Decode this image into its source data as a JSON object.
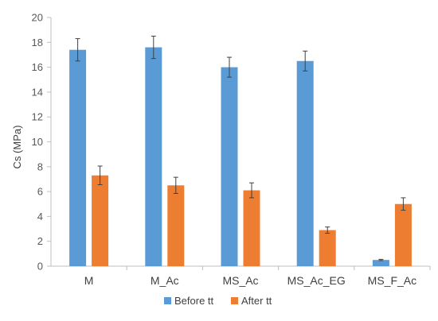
{
  "chart_data": {
    "type": "bar",
    "ylabel": "Cs (MPa)",
    "ylim": [
      0,
      20
    ],
    "yticks": [
      "0",
      "2",
      "4",
      "6",
      "8",
      "10",
      "12",
      "14",
      "16",
      "18",
      "20"
    ],
    "categories": [
      "M",
      "M_Ac",
      "MS_Ac",
      "MS_Ac_EG",
      "MS_F_Ac"
    ],
    "grid": false,
    "legend_position": "bottom",
    "series": [
      {
        "name": "Before tt",
        "color": "#5B9BD5",
        "values": [
          17.4,
          17.6,
          16.0,
          16.5,
          0.5
        ],
        "errors": [
          0.9,
          0.9,
          0.8,
          0.8,
          0.05
        ]
      },
      {
        "name": "After tt",
        "color": "#ED7D31",
        "values": [
          7.3,
          6.5,
          6.1,
          2.9,
          5.0
        ],
        "errors": [
          0.75,
          0.65,
          0.6,
          0.25,
          0.5
        ]
      }
    ]
  }
}
